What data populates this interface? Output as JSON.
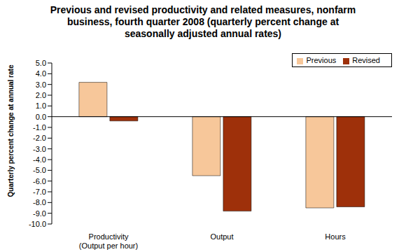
{
  "chart_data": {
    "type": "bar",
    "title": "Previous and revised productivity and related measures, nonfarm business, fourth quarter 2008 (quarterly percent change at seasonally adjusted annual rates)",
    "y_label": "Quarterly percent change at annual rate",
    "categories": [
      "Productivity (Output per hour)",
      "Output",
      "Hours"
    ],
    "series": [
      {
        "name": "Previous",
        "color": "#f7c79a",
        "values": [
          3.2,
          -5.5,
          -8.5
        ]
      },
      {
        "name": "Revised",
        "color": "#9e300a",
        "values": [
          -0.4,
          -8.8,
          -8.4
        ]
      }
    ],
    "ylim": [
      -10,
      5
    ],
    "yticks": [
      {
        "value": 5,
        "label": "5.0"
      },
      {
        "value": 4,
        "label": "4.0"
      },
      {
        "value": 3,
        "label": "3.0"
      },
      {
        "value": 2,
        "label": "2.0"
      },
      {
        "value": 1,
        "label": "1.0"
      },
      {
        "value": 0,
        "label": "0.0"
      },
      {
        "value": -1,
        "label": "-1.0"
      },
      {
        "value": -2,
        "label": "-2.0"
      },
      {
        "value": -3,
        "label": "-3.0"
      },
      {
        "value": -4,
        "label": "-4.0"
      },
      {
        "value": -5,
        "label": "-5.0"
      },
      {
        "value": -6,
        "label": "-6.0"
      },
      {
        "value": -7,
        "label": "-7.0"
      },
      {
        "value": -8,
        "label": "-8.0"
      },
      {
        "value": -9,
        "label": "-9.0"
      },
      {
        "value": -10,
        "label": "-10.0"
      }
    ],
    "grid": false,
    "legend": "upper right"
  }
}
